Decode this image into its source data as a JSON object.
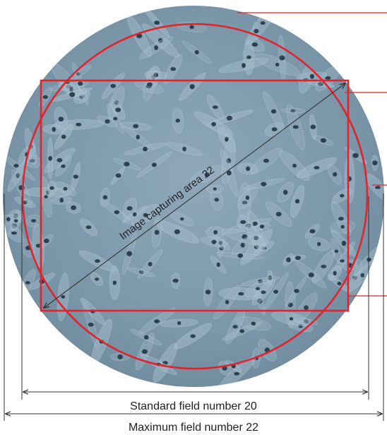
{
  "diagram": {
    "labels": {
      "image_capturing_area": "Image capturing area 22",
      "standard_field": "Standard field number 20",
      "maximum_field": "Maximum field number 22"
    },
    "colors": {
      "circle_outline": "#e0242c",
      "rect_outline": "#e0242c",
      "dimension_line": "#333333",
      "sample_bg": "#7e99ac",
      "sample_light": "#9fb7c7",
      "nucleus": "#243848"
    },
    "illustration": "micrograph-of-adherent-cells"
  }
}
